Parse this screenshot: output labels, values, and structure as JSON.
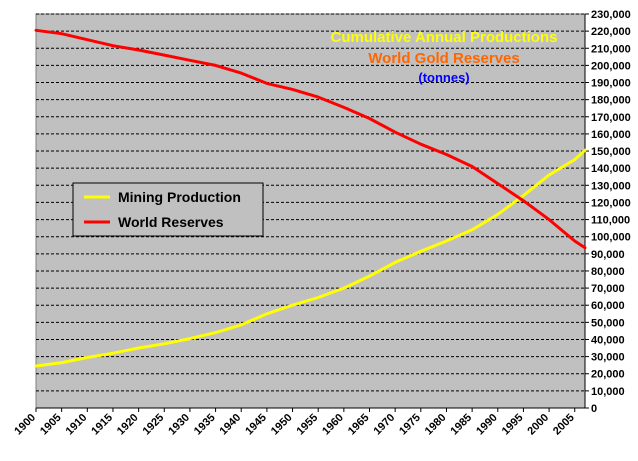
{
  "chart_data": {
    "type": "line",
    "title_lines": [
      {
        "text": "Cumulative Annual Productions",
        "color": "#ffff00"
      },
      {
        "text": "World Gold Reserves",
        "color": "#ff6600"
      },
      {
        "text": "(tonnes)",
        "color": "#0000ff"
      }
    ],
    "xlim": [
      1900,
      2007
    ],
    "ylim": [
      0,
      230000
    ],
    "x_ticks": [
      1900,
      1905,
      1910,
      1915,
      1920,
      1925,
      1930,
      1935,
      1940,
      1945,
      1950,
      1955,
      1960,
      1965,
      1970,
      1975,
      1980,
      1985,
      1990,
      1995,
      2000,
      2005
    ],
    "x_tick_labels": [
      "1900",
      "1905",
      "1910",
      "1915",
      "1920",
      "1925",
      "1930",
      "1935",
      "1940",
      "1945",
      "1950",
      "1955",
      "1960",
      "1965",
      "1970",
      "1975",
      "1980",
      "1985",
      "1990",
      "1995",
      "2000",
      "2005"
    ],
    "y_tick_labels": [
      "0",
      "10,000",
      "20,000",
      "30,000",
      "40,000",
      "50,000",
      "60,000",
      "70,000",
      "80,000",
      "90,000",
      "100,000",
      "110,000",
      "120,000",
      "130,000",
      "140,000",
      "150,000",
      "160,000",
      "170,000",
      "180,000",
      "190,000",
      "200,000",
      "210,000",
      "220,000",
      "230,000"
    ],
    "y_tick_values": [
      0,
      10000,
      20000,
      30000,
      40000,
      50000,
      60000,
      70000,
      80000,
      90000,
      100000,
      110000,
      120000,
      130000,
      140000,
      150000,
      160000,
      170000,
      180000,
      190000,
      200000,
      210000,
      220000,
      230000
    ],
    "grid": "horizontal dashed",
    "legend_position": "left-middle",
    "plot_background": "#c0c0c0",
    "series": [
      {
        "name": "Mining Production",
        "color": "#ffff00",
        "x": [
          1900,
          1905,
          1910,
          1915,
          1920,
          1925,
          1930,
          1935,
          1940,
          1945,
          1950,
          1955,
          1960,
          1965,
          1970,
          1975,
          1980,
          1985,
          1990,
          1995,
          2000,
          2005,
          2007
        ],
        "y": [
          24500,
          26500,
          29500,
          32000,
          35000,
          37500,
          40500,
          44000,
          48500,
          55000,
          60000,
          64500,
          70000,
          77000,
          85000,
          91500,
          97500,
          104000,
          113000,
          124000,
          136000,
          145000,
          150500
        ]
      },
      {
        "name": "World Reserves",
        "color": "#ff0000",
        "x": [
          1900,
          1905,
          1910,
          1915,
          1920,
          1925,
          1930,
          1935,
          1940,
          1945,
          1950,
          1955,
          1960,
          1965,
          1970,
          1975,
          1980,
          1985,
          1990,
          1995,
          2000,
          2005,
          2007
        ],
        "y": [
          220500,
          218500,
          215000,
          211500,
          209000,
          206000,
          203000,
          200000,
          195500,
          189500,
          186000,
          181500,
          175500,
          169000,
          161000,
          154000,
          148000,
          141000,
          131000,
          121000,
          110000,
          97500,
          93500
        ]
      }
    ]
  }
}
